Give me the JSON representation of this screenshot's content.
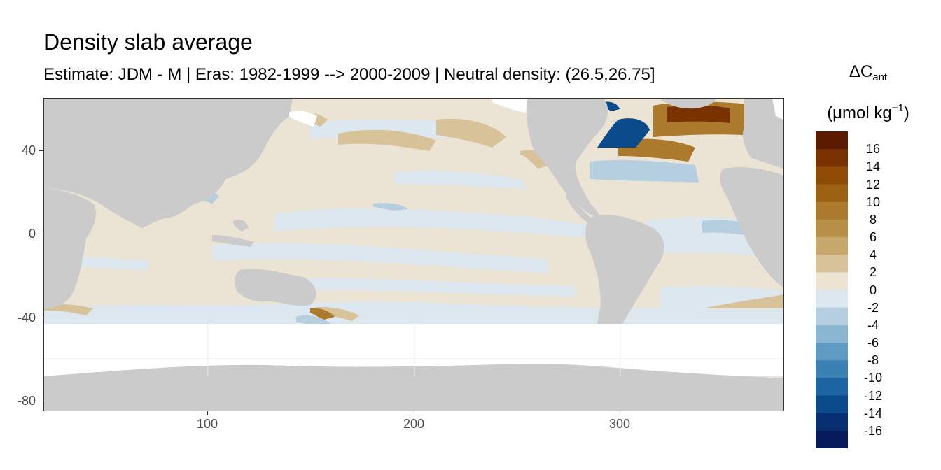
{
  "title": "Density slab average",
  "subtitle": "Estimate: JDM - M | Eras: 1982-1999 --> 2000-2009 | Neutral density: (26.5,26.75]",
  "legend": {
    "title_main": "ΔC",
    "title_sub": "ant",
    "unit_open": "(μmol kg",
    "unit_sup": "−1",
    "unit_close": ")",
    "labels": [
      "16",
      "14",
      "12",
      "10",
      "8",
      "6",
      "4",
      "2",
      "0",
      "-2",
      "-4",
      "-6",
      "-8",
      "-10",
      "-12",
      "-14",
      "-16"
    ],
    "colors": [
      "#5c1a00",
      "#7a3300",
      "#8f4a05",
      "#9c6013",
      "#ab7a2c",
      "#b88f47",
      "#c6a86c",
      "#d8c29a",
      "#ece3d3",
      "#dce7ef",
      "#b5cee0",
      "#8bb6d2",
      "#5f9bc3",
      "#3b80b3",
      "#1c64a2",
      "#0b4a8b",
      "#072f72",
      "#061a5c"
    ]
  },
  "axes": {
    "y_ticks": [
      "40",
      "0",
      "-40",
      "-80"
    ],
    "x_ticks": [
      "100",
      "200",
      "300"
    ]
  },
  "colors": {
    "land": "#cbcbcb",
    "ocean_neutral": "#ebe3d3",
    "no_data": "#ffffff",
    "frame": "#333333"
  }
}
